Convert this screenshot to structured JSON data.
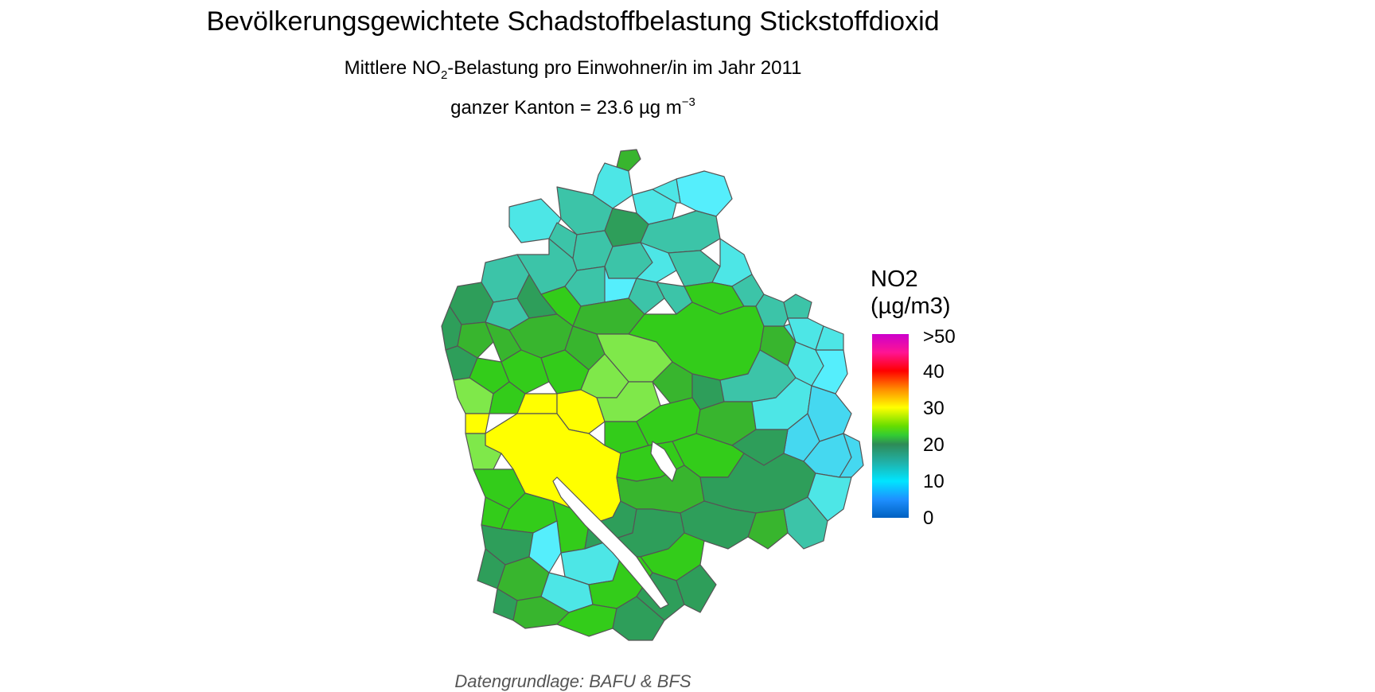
{
  "header": {
    "title": "Bevölkerungsgewichtete Schadstoffbelastung Stickstoffdioxid",
    "subtitle_pre": "Mittlere NO",
    "subtitle_sub": "2",
    "subtitle_post": "-Belastung pro Einwohner/in im Jahr 2011",
    "kanton_text": "ganzer Kanton = 23.6 µg m",
    "kanton_sup": "−3"
  },
  "caption": "Datengrundlage: BAFU & BFS",
  "legend": {
    "title_line1": "NO2",
    "title_line2": "(µg/m3)",
    "ticks": [
      ">50",
      "40",
      "30",
      "20",
      "10",
      "0"
    ]
  },
  "colors": {
    "yellow": "#ffff00",
    "light_green": "#7fe84a",
    "green": "#33cc1a",
    "mid_green": "#38b52e",
    "dark_green": "#2e9e5a",
    "teal": "#3cc4a8",
    "cyan": "#4de6e6",
    "light_cyan": "#55eefc",
    "blue_cyan": "#45d8f0",
    "border": "#555555"
  }
}
